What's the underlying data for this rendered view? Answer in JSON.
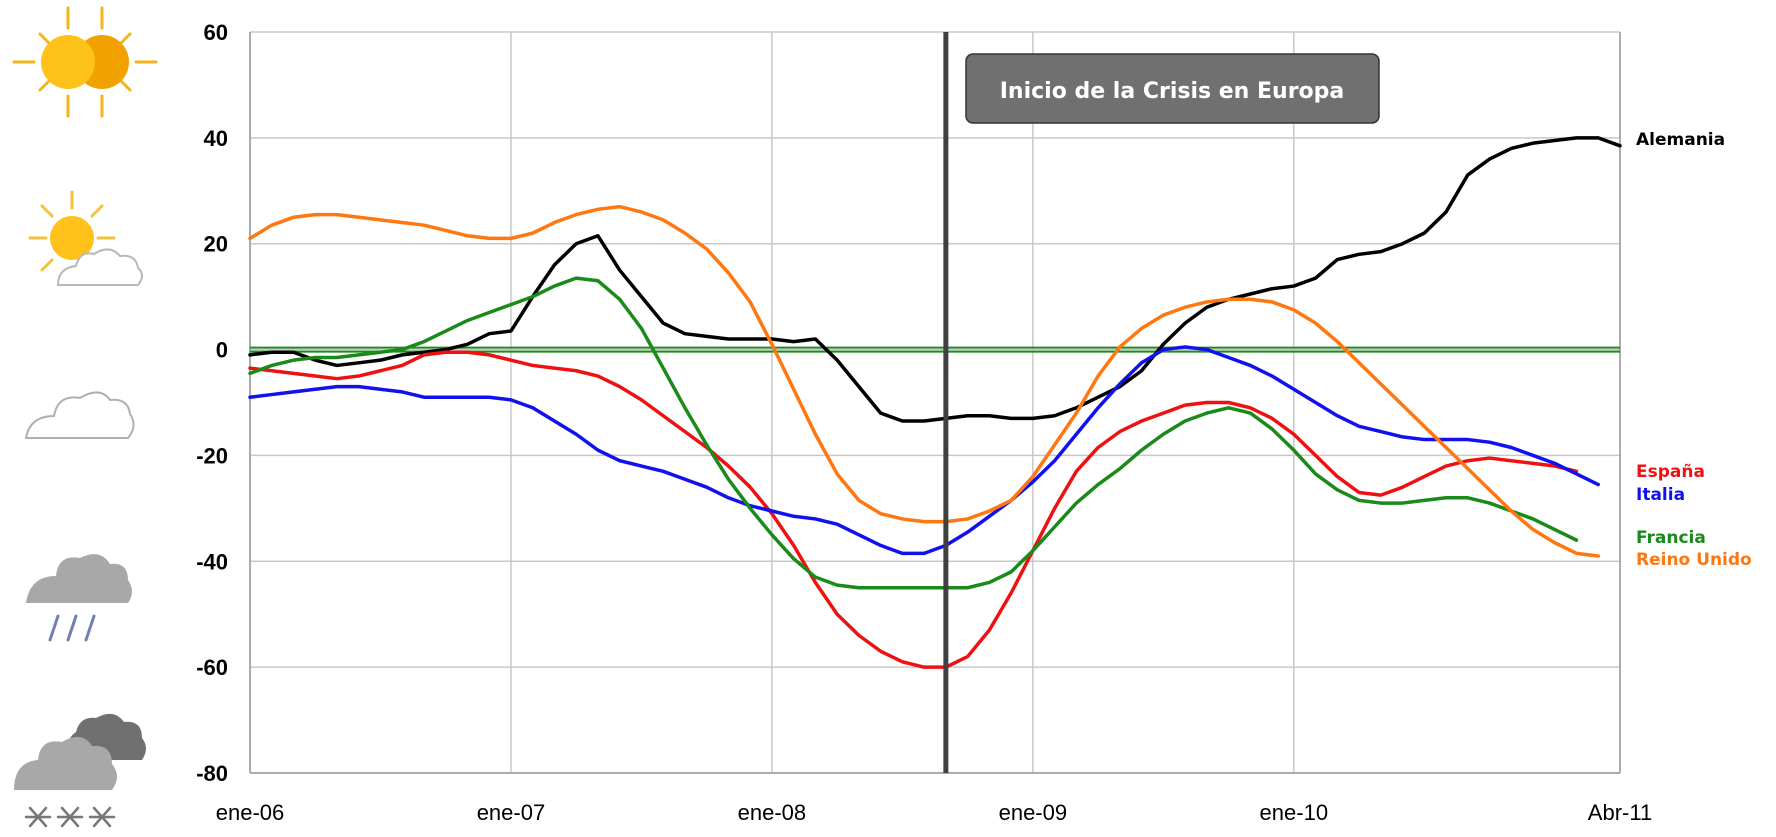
{
  "chart_data": {
    "type": "line",
    "title": "",
    "xlabel": "",
    "ylabel": "",
    "ylim": [
      -80,
      60
    ],
    "yticks": [
      60,
      40,
      20,
      0,
      -20,
      -40,
      -60,
      -80
    ],
    "xlim": [
      0,
      63
    ],
    "xticks": [
      {
        "x": 0,
        "label": "ene-06"
      },
      {
        "x": 12,
        "label": "ene-07"
      },
      {
        "x": 24,
        "label": "ene-08"
      },
      {
        "x": 36,
        "label": "ene-09"
      },
      {
        "x": 48,
        "label": "ene-10"
      },
      {
        "x": 63,
        "label": "Abr-11"
      }
    ],
    "grid": true,
    "reference_line": {
      "y": 0,
      "color": "#1f8a1f"
    },
    "event_line": {
      "x": 32,
      "color": "#404040"
    },
    "annotation": {
      "text": "Inicio de la Crisis en Europa"
    },
    "weather_icons": [
      "sunny-icon",
      "partly-cloudy-icon",
      "cloudy-icon",
      "rain-icon",
      "snow-icon"
    ],
    "series": [
      {
        "name": "Alemania",
        "color": "#000000",
        "values": [
          -1,
          -0.5,
          -0.5,
          -2,
          -3,
          -2.5,
          -2,
          -1,
          -0.5,
          0,
          1,
          3,
          3.5,
          10,
          16,
          20,
          21.5,
          15,
          10,
          5,
          3,
          2.5,
          2,
          2,
          2,
          1.5,
          2,
          -2,
          -7,
          -12,
          -13.5,
          -13.5,
          -13,
          -12.5,
          -12.5,
          -13,
          -13,
          -12.5,
          -11,
          -9,
          -7,
          -4,
          1,
          5,
          8,
          9.5,
          10.5,
          11.5,
          12,
          13.5,
          17,
          18,
          18.5,
          20,
          22,
          26,
          33,
          36,
          38,
          39,
          39.5,
          40,
          40,
          38.5
        ]
      },
      {
        "name": "España",
        "color": "#ee1111",
        "values": [
          -3.5,
          -4,
          -4.5,
          -5,
          -5.5,
          -5,
          -4,
          -3,
          -1,
          -0.5,
          -0.5,
          -1,
          -2,
          -3,
          -3.5,
          -4,
          -5,
          -7,
          -9.5,
          -12.5,
          -15.5,
          -18.5,
          -22,
          -26,
          -31,
          -37,
          -44,
          -50,
          -54,
          -57,
          -59,
          -60,
          -60,
          -58,
          -53,
          -46,
          -38,
          -30,
          -23,
          -18.5,
          -15.5,
          -13.5,
          -12,
          -10.5,
          -10,
          -10,
          -11,
          -13,
          -16,
          -20,
          -24,
          -27,
          -27.5,
          -26,
          -24,
          -22,
          -21,
          -20.5,
          -21,
          -21.5,
          -22,
          -23
        ]
      },
      {
        "name": "Italia",
        "color": "#1111ee",
        "values": [
          -9,
          -8.5,
          -8,
          -7.5,
          -7,
          -7,
          -7.5,
          -8,
          -9,
          -9,
          -9,
          -9,
          -9.5,
          -11,
          -13.5,
          -16,
          -19,
          -21,
          -22,
          -23,
          -24.5,
          -26,
          -28,
          -29.5,
          -30.5,
          -31.5,
          -32,
          -33,
          -35,
          -37,
          -38.5,
          -38.5,
          -37,
          -34.5,
          -31.5,
          -28.5,
          -25,
          -21,
          -16,
          -11,
          -6.5,
          -2.5,
          0,
          0.5,
          0,
          -1.5,
          -3,
          -5,
          -7.5,
          -10,
          -12.5,
          -14.5,
          -15.5,
          -16.5,
          -17,
          -17,
          -17,
          -17.5,
          -18.5,
          -20,
          -21.5,
          -23.5,
          -25.5
        ]
      },
      {
        "name": "Francia",
        "color": "#1a8a1a",
        "values": [
          -4.5,
          -3,
          -2,
          -1.5,
          -1.5,
          -1,
          -0.5,
          0,
          1.5,
          3.5,
          5.5,
          7,
          8.5,
          10,
          12,
          13.5,
          13,
          9.5,
          4,
          -3.5,
          -11,
          -18,
          -24.5,
          -30,
          -35,
          -39.5,
          -43,
          -44.5,
          -45,
          -45,
          -45,
          -45,
          -45,
          -45,
          -44,
          -42,
          -38,
          -33.5,
          -29,
          -25.5,
          -22.5,
          -19,
          -16,
          -13.5,
          -12,
          -11,
          -12,
          -15,
          -19,
          -23.5,
          -26.5,
          -28.5,
          -29,
          -29,
          -28.5,
          -28,
          -28,
          -29,
          -30.5,
          -32,
          -34,
          -36
        ]
      },
      {
        "name": "Reino Unido",
        "color": "#ff7711",
        "values": [
          21,
          23.5,
          25,
          25.5,
          25.5,
          25,
          24.5,
          24,
          23.5,
          22.5,
          21.5,
          21,
          21,
          22,
          24,
          25.5,
          26.5,
          27,
          26,
          24.5,
          22,
          19,
          14.5,
          9,
          1,
          -7.5,
          -16,
          -23.5,
          -28.5,
          -31,
          -32,
          -32.5,
          -32.5,
          -32,
          -30.5,
          -28.5,
          -24,
          -18,
          -12,
          -5,
          0.5,
          4,
          6.5,
          8,
          9,
          9.5,
          9.5,
          9,
          7.5,
          5,
          1.5,
          -2.5,
          -6.5,
          -10.5,
          -14.5,
          -18.5,
          -22.5,
          -26.5,
          -30.5,
          -34,
          -36.5,
          -38.5,
          -39
        ]
      }
    ]
  }
}
